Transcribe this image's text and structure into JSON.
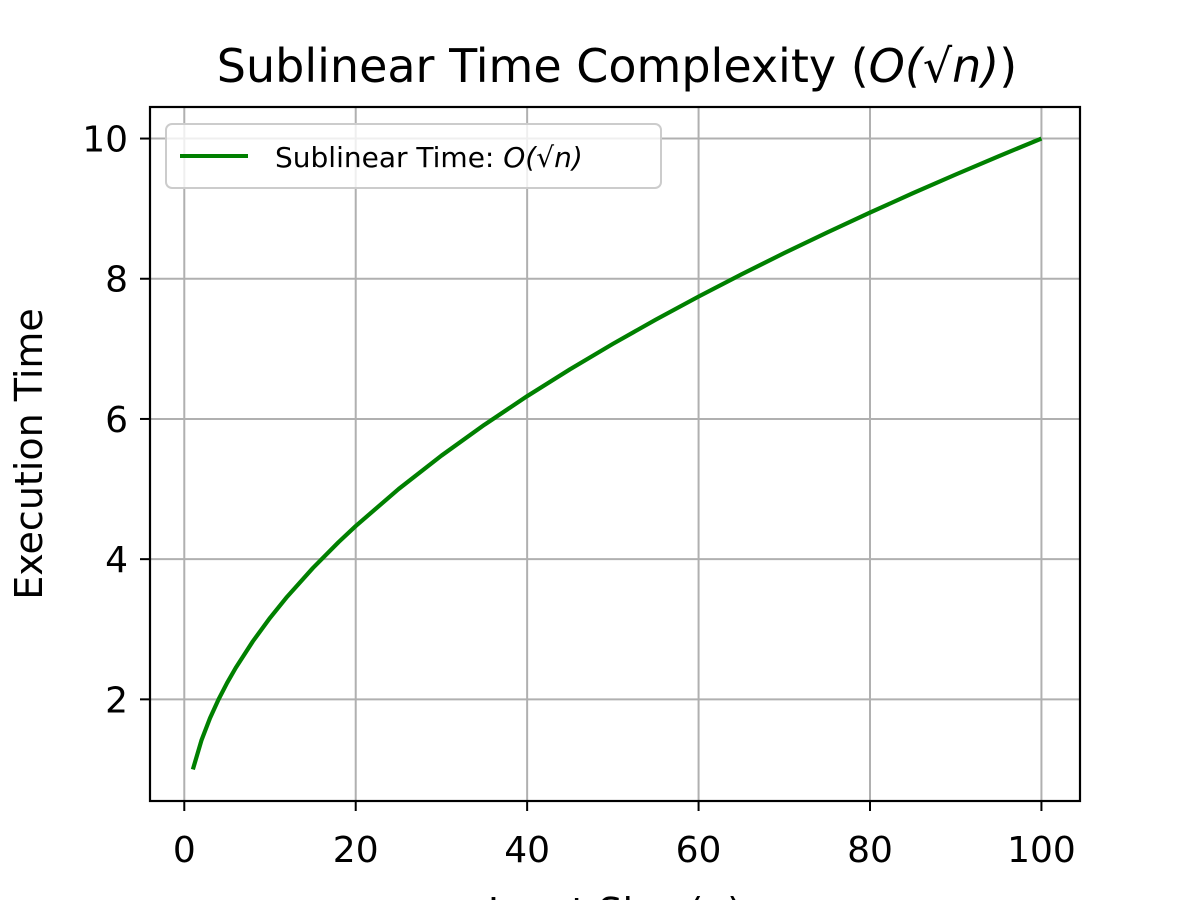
{
  "chart_data": {
    "type": "line",
    "title": "Sublinear Time Complexity (O(√n))",
    "title_parts": {
      "prefix": "Sublinear Time Complexity (",
      "math": "O(√n)",
      "suffix": ")"
    },
    "xlabel": "Input Size (n)",
    "ylabel": "Execution Time",
    "xlim": [
      -4,
      104.5
    ],
    "ylim": [
      0.55,
      10.45
    ],
    "x_ticks": [
      0,
      20,
      40,
      60,
      80,
      100
    ],
    "y_ticks": [
      2,
      4,
      6,
      8,
      10
    ],
    "x_tick_labels": [
      "0",
      "20",
      "40",
      "60",
      "80",
      "100"
    ],
    "y_tick_labels": [
      "2",
      "4",
      "6",
      "8",
      "10"
    ],
    "grid": true,
    "legend_position": "upper-left",
    "series": [
      {
        "name": "Sublinear Time: O(√n)",
        "legend_label_parts": {
          "prefix": "Sublinear Time: ",
          "math": "O(√n)"
        },
        "color": "#008000",
        "x": [
          1,
          2,
          3,
          4,
          5,
          6,
          8,
          10,
          12,
          15,
          18,
          20,
          25,
          30,
          35,
          40,
          45,
          50,
          55,
          60,
          65,
          70,
          75,
          80,
          85,
          90,
          95,
          100
        ],
        "y": [
          1.0,
          1.414,
          1.732,
          2.0,
          2.236,
          2.449,
          2.828,
          3.162,
          3.464,
          3.873,
          4.243,
          4.472,
          5.0,
          5.477,
          5.916,
          6.325,
          6.708,
          7.071,
          7.416,
          7.746,
          8.062,
          8.367,
          8.66,
          8.944,
          9.22,
          9.487,
          9.747,
          10.0
        ]
      }
    ]
  },
  "colors": {
    "line": "#008000",
    "grid": "#b0b0b0",
    "axes": "#000000",
    "background": "#ffffff"
  }
}
